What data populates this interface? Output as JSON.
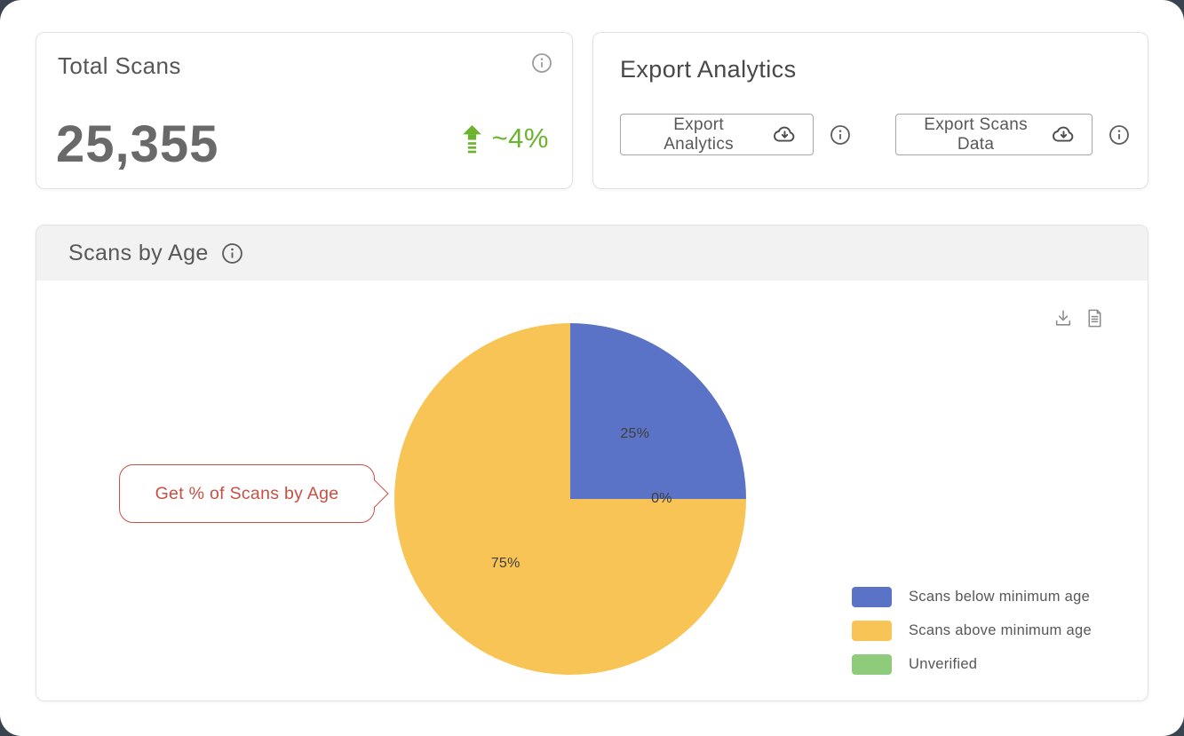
{
  "total_card": {
    "title": "Total Scans",
    "value": "25,355",
    "trend_text": "~4%"
  },
  "export_card": {
    "title": "Export Analytics",
    "button1_label": "Export Analytics",
    "button2_label": "Export Scans Data"
  },
  "chart_card": {
    "title": "Scans by Age",
    "callout_text": "Get % of Scans by Age"
  },
  "chart_data": {
    "type": "pie",
    "title": "Scans by Age",
    "slices": [
      {
        "label": "Scans below minimum age",
        "value": 25,
        "display": "25%",
        "color": "#5a73c6"
      },
      {
        "label": "Scans above minimum age",
        "value": 75,
        "display": "75%",
        "color": "#f8c455"
      },
      {
        "label": "Unverified",
        "value": 0,
        "display": "0%",
        "color": "#8ecb7a"
      }
    ],
    "draw_order": [
      0,
      2,
      1
    ],
    "legend_position": "bottom-right",
    "label_radius_fraction": 0.52
  },
  "colors": {
    "accent_green": "#6cb32f",
    "callout_red": "#c94f43",
    "chart_header_bg": "#f2f2f2"
  }
}
